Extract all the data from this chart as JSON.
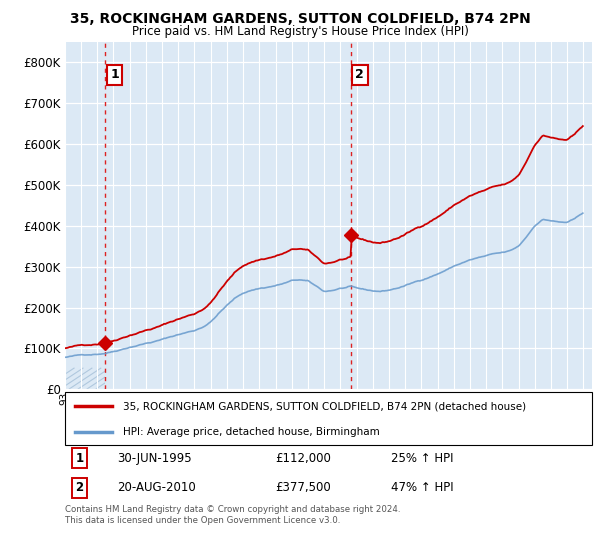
{
  "title_line1": "35, ROCKINGHAM GARDENS, SUTTON COLDFIELD, B74 2PN",
  "title_line2": "Price paid vs. HM Land Registry's House Price Index (HPI)",
  "ylim": [
    0,
    850000
  ],
  "yticks": [
    0,
    100000,
    200000,
    300000,
    400000,
    500000,
    600000,
    700000,
    800000
  ],
  "bg_color": "#ffffff",
  "plot_bg_color": "#dce9f5",
  "hatch_bg_color": "#c8d8e8",
  "grid_color": "#ffffff",
  "legend_entry1": "35, ROCKINGHAM GARDENS, SUTTON COLDFIELD, B74 2PN (detached house)",
  "legend_entry2": "HPI: Average price, detached house, Birmingham",
  "annotation1_date": "30-JUN-1995",
  "annotation1_price": "£112,000",
  "annotation1_hpi": "25% ↑ HPI",
  "annotation2_date": "20-AUG-2010",
  "annotation2_price": "£377,500",
  "annotation2_hpi": "47% ↑ HPI",
  "footer": "Contains HM Land Registry data © Crown copyright and database right 2024.\nThis data is licensed under the Open Government Licence v3.0.",
  "sale1_year": 1995.5,
  "sale1_price": 112000,
  "sale2_year": 2010.63,
  "sale2_price": 377500,
  "vline1_x": 1995.5,
  "vline2_x": 2010.63,
  "red_line_color": "#cc0000",
  "hpi_line_color": "#6699cc",
  "vline_color": "#dd2222",
  "marker_color": "#cc0000",
  "xmin": 1993.0,
  "xmax": 2025.5
}
